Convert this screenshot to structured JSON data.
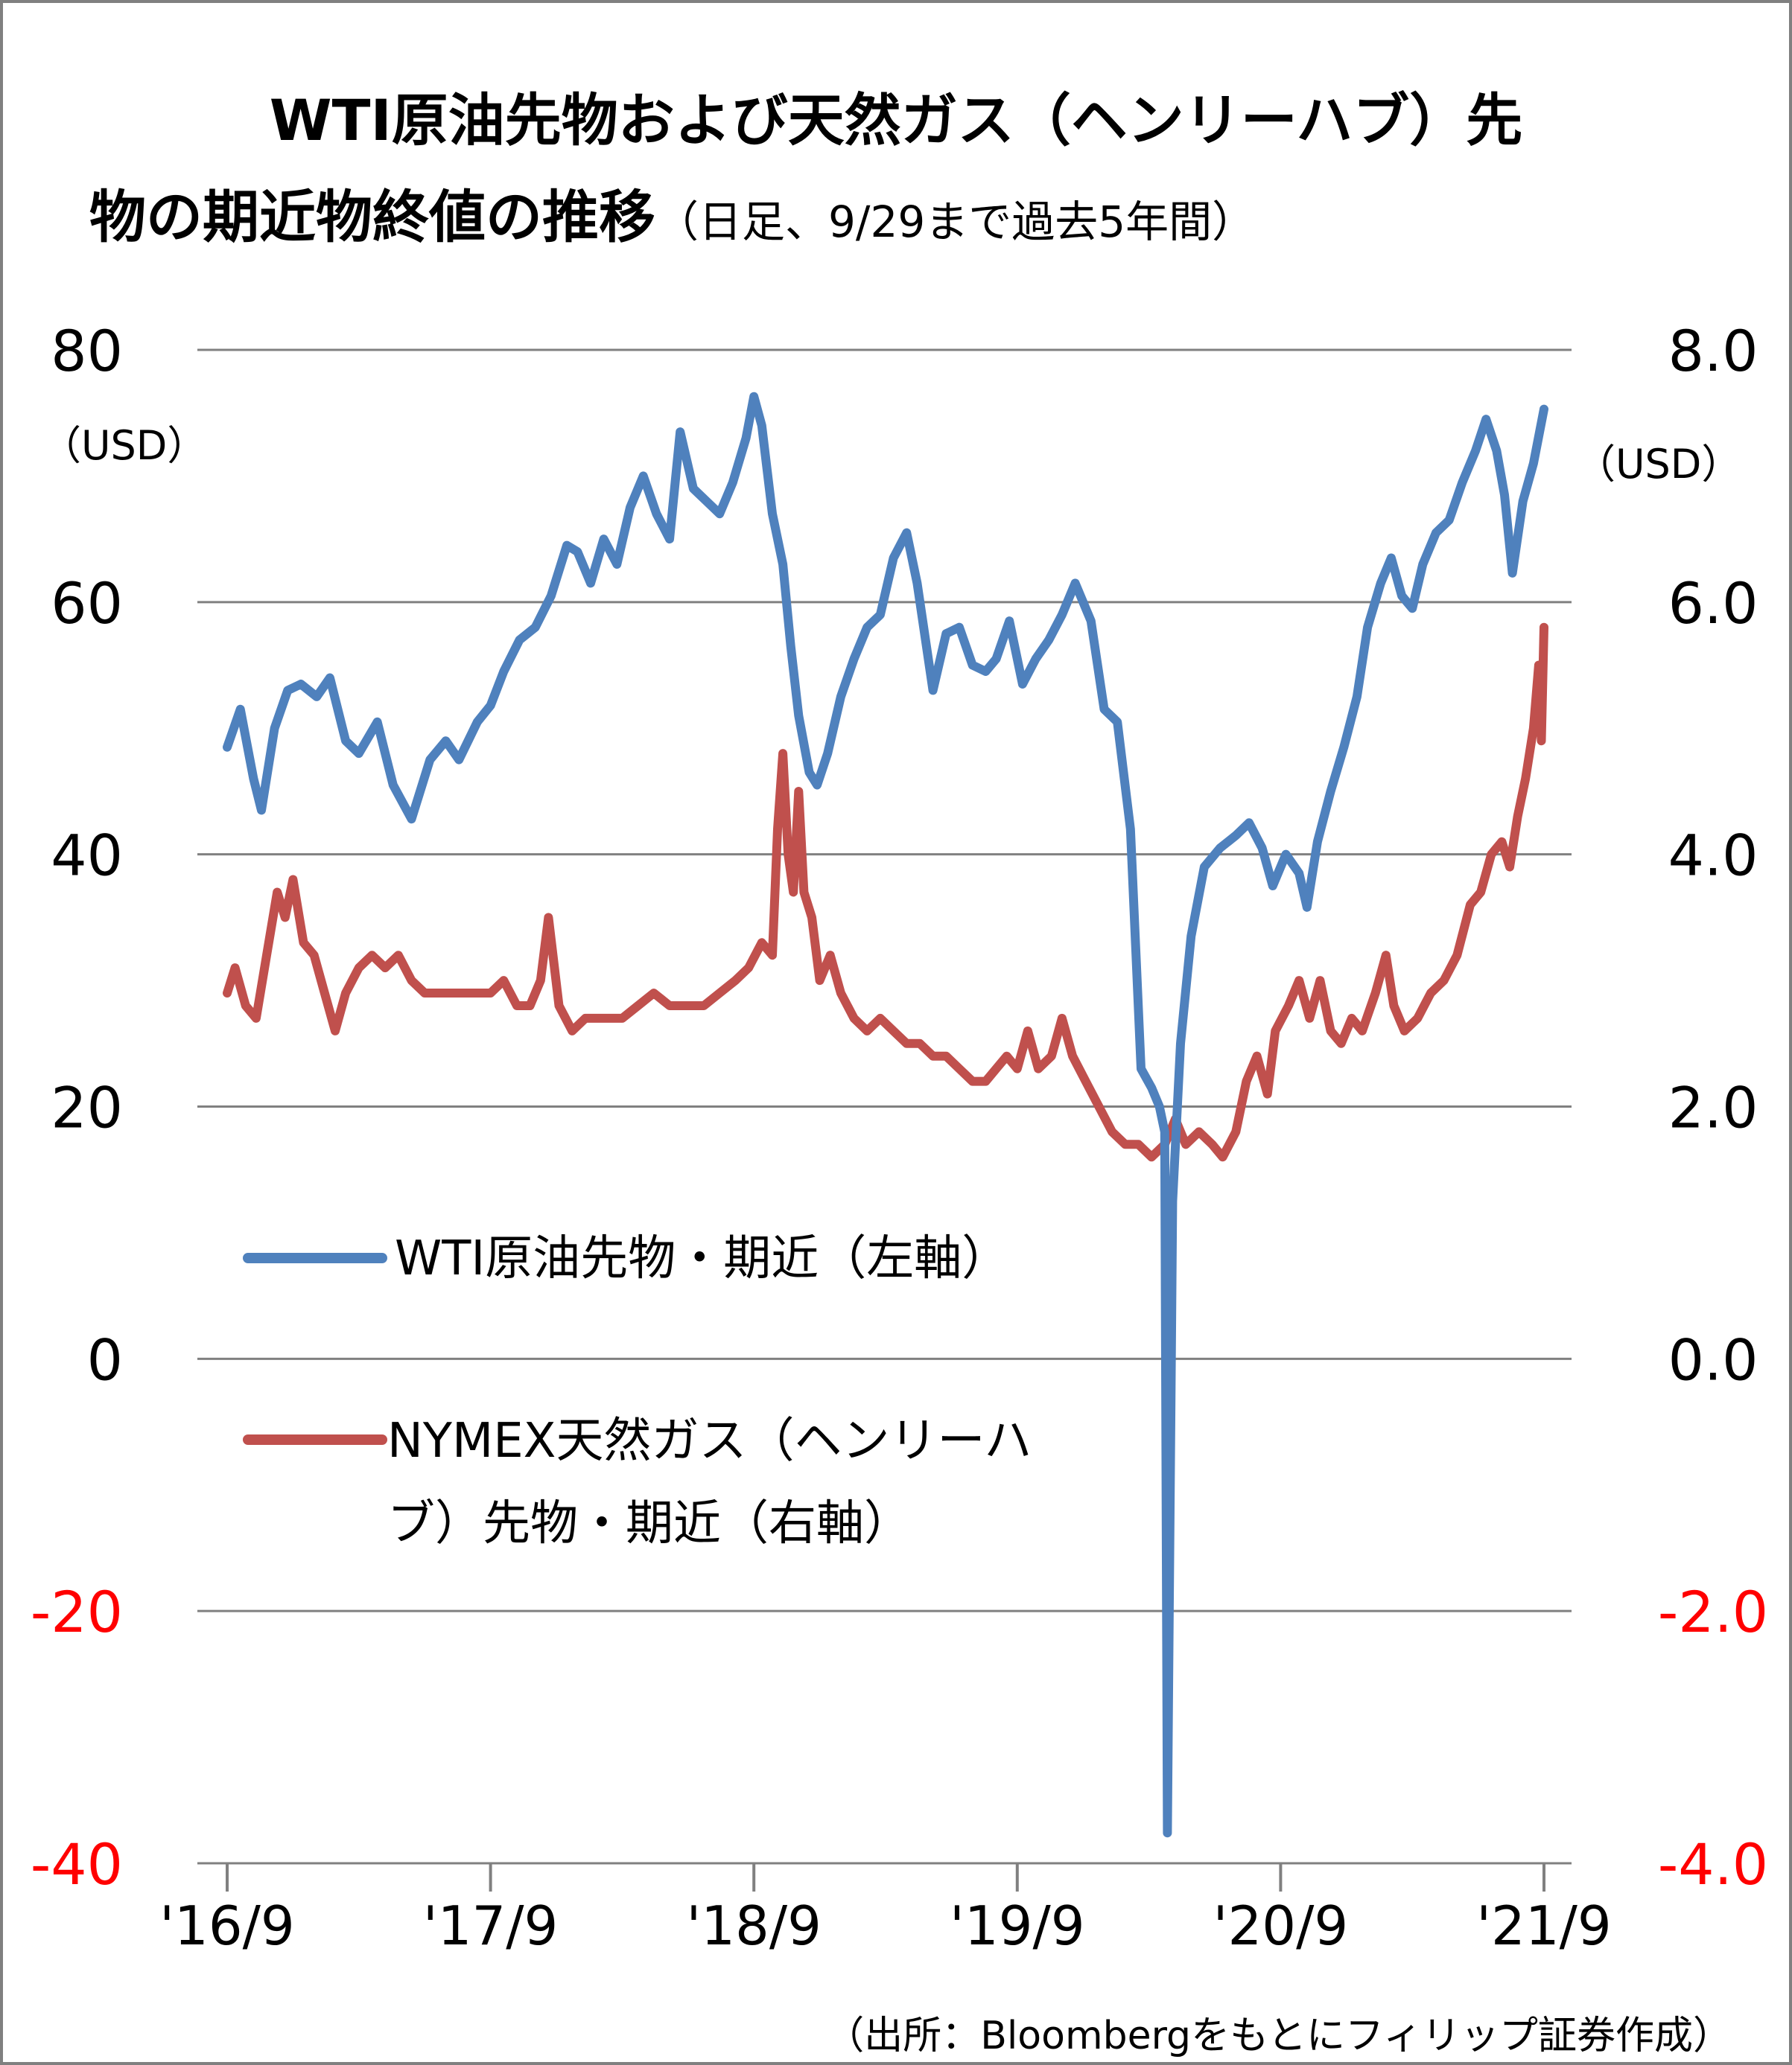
{
  "title": {
    "line1": "WTI原油先物および天然ガス（ヘンリーハブ）先",
    "line2": "物の期近物終値の推移",
    "line2_sub": "（日足、9/29まで過去5年間）"
  },
  "source": "（出所：Bloombergをもとにフィリップ証券作成）",
  "colors": {
    "wti": "#4f81bd",
    "gas": "#c0504d",
    "negative_tick": "#ff0000",
    "grid": "#808080",
    "text": "#000000"
  },
  "chart_data": {
    "type": "line",
    "x_label_ticks": [
      "'16/9",
      "'17/9",
      "'18/9",
      "'19/9",
      "'20/9",
      "'21/9"
    ],
    "x_range": [
      2016.74,
      2021.74
    ],
    "left_axis": {
      "unit": "（USD）",
      "ylim": [
        -40,
        80
      ],
      "ticks": [
        "80",
        "60",
        "40",
        "20",
        "0",
        "-20",
        "-40"
      ],
      "tick_values": [
        80,
        60,
        40,
        20,
        0,
        -20,
        -40
      ]
    },
    "right_axis": {
      "unit": "（USD）",
      "ylim": [
        -4.0,
        8.0
      ],
      "ticks": [
        "8.0",
        "6.0",
        "4.0",
        "2.0",
        "0.0",
        "-2.0",
        "-4.0"
      ],
      "tick_values": [
        8,
        6,
        4,
        2,
        0,
        -2,
        -4
      ]
    },
    "grid": true,
    "legend_position": "center-left",
    "series": [
      {
        "name": "WTI原油先物・期近（左軸）",
        "axis": "left",
        "points": [
          [
            2016.74,
            48.5
          ],
          [
            2016.79,
            51.5
          ],
          [
            2016.84,
            46.0
          ],
          [
            2016.87,
            43.5
          ],
          [
            2016.92,
            50.0
          ],
          [
            2016.97,
            53.0
          ],
          [
            2017.02,
            53.5
          ],
          [
            2017.08,
            52.5
          ],
          [
            2017.13,
            54.0
          ],
          [
            2017.19,
            49.0
          ],
          [
            2017.24,
            48.0
          ],
          [
            2017.31,
            50.5
          ],
          [
            2017.37,
            45.5
          ],
          [
            2017.44,
            42.8
          ],
          [
            2017.51,
            47.5
          ],
          [
            2017.57,
            49.0
          ],
          [
            2017.62,
            47.5
          ],
          [
            2017.69,
            50.5
          ],
          [
            2017.74,
            51.8
          ],
          [
            2017.79,
            54.5
          ],
          [
            2017.85,
            57.0
          ],
          [
            2017.91,
            58.0
          ],
          [
            2017.97,
            60.5
          ],
          [
            2018.03,
            64.5
          ],
          [
            2018.07,
            64.0
          ],
          [
            2018.12,
            61.5
          ],
          [
            2018.17,
            65.0
          ],
          [
            2018.22,
            63.0
          ],
          [
            2018.27,
            67.5
          ],
          [
            2018.32,
            70.0
          ],
          [
            2018.37,
            67.0
          ],
          [
            2018.42,
            65.0
          ],
          [
            2018.46,
            73.5
          ],
          [
            2018.51,
            69.0
          ],
          [
            2018.56,
            68.0
          ],
          [
            2018.61,
            67.0
          ],
          [
            2018.66,
            69.5
          ],
          [
            2018.71,
            73.0
          ],
          [
            2018.74,
            76.3
          ],
          [
            2018.77,
            74.0
          ],
          [
            2018.81,
            67.0
          ],
          [
            2018.85,
            63.0
          ],
          [
            2018.88,
            56.5
          ],
          [
            2018.91,
            51.0
          ],
          [
            2018.95,
            46.5
          ],
          [
            2018.98,
            45.5
          ],
          [
            2019.02,
            48.0
          ],
          [
            2019.07,
            52.5
          ],
          [
            2019.12,
            55.5
          ],
          [
            2019.17,
            58.0
          ],
          [
            2019.22,
            59.0
          ],
          [
            2019.27,
            63.5
          ],
          [
            2019.32,
            65.5
          ],
          [
            2019.36,
            61.5
          ],
          [
            2019.42,
            53.0
          ],
          [
            2019.47,
            57.5
          ],
          [
            2019.52,
            58.0
          ],
          [
            2019.57,
            55.0
          ],
          [
            2019.62,
            54.5
          ],
          [
            2019.66,
            55.5
          ],
          [
            2019.71,
            58.5
          ],
          [
            2019.76,
            53.5
          ],
          [
            2019.81,
            55.5
          ],
          [
            2019.86,
            57.0
          ],
          [
            2019.91,
            59.0
          ],
          [
            2019.96,
            61.5
          ],
          [
            2020.02,
            58.5
          ],
          [
            2020.07,
            51.5
          ],
          [
            2020.12,
            50.5
          ],
          [
            2020.17,
            42.0
          ],
          [
            2020.21,
            23.0
          ],
          [
            2020.25,
            21.5
          ],
          [
            2020.28,
            20.0
          ],
          [
            2020.3,
            18.0
          ],
          [
            2020.31,
            -37.6
          ],
          [
            2020.33,
            12.5
          ],
          [
            2020.36,
            25.0
          ],
          [
            2020.4,
            33.5
          ],
          [
            2020.45,
            39.0
          ],
          [
            2020.51,
            40.5
          ],
          [
            2020.57,
            41.5
          ],
          [
            2020.62,
            42.5
          ],
          [
            2020.67,
            40.5
          ],
          [
            2020.71,
            37.5
          ],
          [
            2020.76,
            40.0
          ],
          [
            2020.81,
            38.5
          ],
          [
            2020.84,
            35.8
          ],
          [
            2020.88,
            41.0
          ],
          [
            2020.93,
            45.0
          ],
          [
            2020.98,
            48.5
          ],
          [
            2021.03,
            52.5
          ],
          [
            2021.07,
            58.0
          ],
          [
            2021.12,
            61.5
          ],
          [
            2021.16,
            63.5
          ],
          [
            2021.2,
            60.5
          ],
          [
            2021.24,
            59.5
          ],
          [
            2021.28,
            63.0
          ],
          [
            2021.33,
            65.5
          ],
          [
            2021.38,
            66.5
          ],
          [
            2021.43,
            69.5
          ],
          [
            2021.48,
            72.0
          ],
          [
            2021.52,
            74.5
          ],
          [
            2021.56,
            72.0
          ],
          [
            2021.59,
            68.5
          ],
          [
            2021.62,
            62.3
          ],
          [
            2021.66,
            68.0
          ],
          [
            2021.7,
            71.0
          ],
          [
            2021.74,
            75.3
          ]
        ]
      },
      {
        "name": "NYMEX天然ガス（ヘンリーハブ）先物・期近（右軸）",
        "axis": "right",
        "points": [
          [
            2016.74,
            2.9
          ],
          [
            2016.77,
            3.1
          ],
          [
            2016.81,
            2.8
          ],
          [
            2016.85,
            2.7
          ],
          [
            2016.89,
            3.2
          ],
          [
            2016.93,
            3.7
          ],
          [
            2016.96,
            3.5
          ],
          [
            2016.99,
            3.8
          ],
          [
            2017.03,
            3.3
          ],
          [
            2017.07,
            3.2
          ],
          [
            2017.11,
            2.9
          ],
          [
            2017.15,
            2.6
          ],
          [
            2017.19,
            2.9
          ],
          [
            2017.24,
            3.1
          ],
          [
            2017.29,
            3.2
          ],
          [
            2017.34,
            3.1
          ],
          [
            2017.39,
            3.2
          ],
          [
            2017.44,
            3.0
          ],
          [
            2017.49,
            2.9
          ],
          [
            2017.55,
            2.9
          ],
          [
            2017.61,
            2.9
          ],
          [
            2017.68,
            2.9
          ],
          [
            2017.74,
            2.9
          ],
          [
            2017.79,
            3.0
          ],
          [
            2017.84,
            2.8
          ],
          [
            2017.89,
            2.8
          ],
          [
            2017.93,
            3.0
          ],
          [
            2017.96,
            3.5
          ],
          [
            2018.0,
            2.8
          ],
          [
            2018.05,
            2.6
          ],
          [
            2018.1,
            2.7
          ],
          [
            2018.17,
            2.7
          ],
          [
            2018.24,
            2.7
          ],
          [
            2018.3,
            2.8
          ],
          [
            2018.36,
            2.9
          ],
          [
            2018.42,
            2.8
          ],
          [
            2018.48,
            2.8
          ],
          [
            2018.55,
            2.8
          ],
          [
            2018.61,
            2.9
          ],
          [
            2018.67,
            3.0
          ],
          [
            2018.72,
            3.1
          ],
          [
            2018.77,
            3.3
          ],
          [
            2018.81,
            3.2
          ],
          [
            2018.83,
            4.2
          ],
          [
            2018.85,
            4.8
          ],
          [
            2018.87,
            4.0
          ],
          [
            2018.89,
            3.7
          ],
          [
            2018.91,
            4.5
          ],
          [
            2018.93,
            3.7
          ],
          [
            2018.96,
            3.5
          ],
          [
            2018.99,
            3.0
          ],
          [
            2019.03,
            3.2
          ],
          [
            2019.07,
            2.9
          ],
          [
            2019.12,
            2.7
          ],
          [
            2019.17,
            2.6
          ],
          [
            2019.22,
            2.7
          ],
          [
            2019.27,
            2.6
          ],
          [
            2019.32,
            2.5
          ],
          [
            2019.37,
            2.5
          ],
          [
            2019.42,
            2.4
          ],
          [
            2019.47,
            2.4
          ],
          [
            2019.52,
            2.3
          ],
          [
            2019.57,
            2.2
          ],
          [
            2019.62,
            2.2
          ],
          [
            2019.66,
            2.3
          ],
          [
            2019.7,
            2.4
          ],
          [
            2019.74,
            2.3
          ],
          [
            2019.78,
            2.6
          ],
          [
            2019.82,
            2.3
          ],
          [
            2019.87,
            2.4
          ],
          [
            2019.91,
            2.7
          ],
          [
            2019.95,
            2.4
          ],
          [
            2020.0,
            2.2
          ],
          [
            2020.05,
            2.0
          ],
          [
            2020.1,
            1.8
          ],
          [
            2020.15,
            1.7
          ],
          [
            2020.2,
            1.7
          ],
          [
            2020.25,
            1.6
          ],
          [
            2020.3,
            1.7
          ],
          [
            2020.34,
            1.9
          ],
          [
            2020.38,
            1.7
          ],
          [
            2020.43,
            1.8
          ],
          [
            2020.48,
            1.7
          ],
          [
            2020.52,
            1.6
          ],
          [
            2020.57,
            1.8
          ],
          [
            2020.61,
            2.2
          ],
          [
            2020.65,
            2.4
          ],
          [
            2020.69,
            2.1
          ],
          [
            2020.72,
            2.6
          ],
          [
            2020.77,
            2.8
          ],
          [
            2020.81,
            3.0
          ],
          [
            2020.85,
            2.7
          ],
          [
            2020.89,
            3.0
          ],
          [
            2020.93,
            2.6
          ],
          [
            2020.97,
            2.5
          ],
          [
            2021.01,
            2.7
          ],
          [
            2021.05,
            2.6
          ],
          [
            2021.1,
            2.9
          ],
          [
            2021.14,
            3.2
          ],
          [
            2021.17,
            2.8
          ],
          [
            2021.21,
            2.6
          ],
          [
            2021.26,
            2.7
          ],
          [
            2021.31,
            2.9
          ],
          [
            2021.36,
            3.0
          ],
          [
            2021.41,
            3.2
          ],
          [
            2021.46,
            3.6
          ],
          [
            2021.5,
            3.7
          ],
          [
            2021.54,
            4.0
          ],
          [
            2021.58,
            4.1
          ],
          [
            2021.61,
            3.9
          ],
          [
            2021.64,
            4.3
          ],
          [
            2021.67,
            4.6
          ],
          [
            2021.7,
            5.0
          ],
          [
            2021.72,
            5.5
          ],
          [
            2021.73,
            4.9
          ],
          [
            2021.74,
            5.8
          ]
        ]
      }
    ]
  }
}
